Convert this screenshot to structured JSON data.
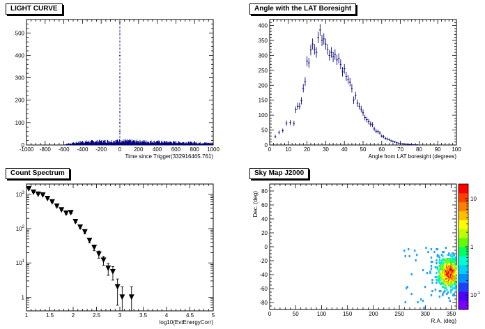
{
  "chart_data": [
    {
      "type": "histogram",
      "title": "LIGHT CURVE",
      "xlabel": "Time since Trigger(332916465.761)",
      "ylabel": "",
      "xlim": [
        -1000,
        1000
      ],
      "ylim": [
        0,
        560
      ],
      "xticks": [
        -1000,
        -800,
        -600,
        -400,
        -200,
        0,
        200,
        400,
        600,
        800,
        1000
      ],
      "yticks": [
        0,
        100,
        200,
        300,
        400,
        500
      ],
      "background_band": {
        "x": [
          -600,
          1000
        ],
        "level_at": [
          [
            -600,
            2
          ],
          [
            -400,
            14
          ],
          [
            -200,
            16
          ],
          [
            0,
            18
          ],
          [
            200,
            16
          ],
          [
            400,
            14
          ],
          [
            600,
            12
          ],
          [
            800,
            10
          ],
          [
            1000,
            8
          ]
        ]
      },
      "spike": {
        "x": 0,
        "values": [
          0,
          20,
          60,
          100,
          150,
          200,
          300,
          400,
          500,
          545
        ]
      },
      "color": "#000080"
    },
    {
      "type": "errorbar",
      "title": "Angle with the LAT Boresight",
      "xlabel": "Angle from LAT boresight (degrees)",
      "ylabel": "",
      "xlim": [
        0,
        100
      ],
      "ylim": [
        0,
        420
      ],
      "xticks": [
        0,
        10,
        20,
        30,
        40,
        50,
        60,
        70,
        80,
        90,
        100
      ],
      "yticks": [
        0,
        50,
        100,
        150,
        200,
        250,
        300,
        350,
        400
      ],
      "x": [
        3,
        5,
        7,
        9,
        11,
        13,
        14,
        15,
        16,
        17,
        18,
        19,
        20,
        21,
        22,
        23,
        24,
        25,
        26,
        27,
        28,
        29,
        30,
        31,
        32,
        33,
        34,
        35,
        36,
        37,
        38,
        39,
        40,
        41,
        42,
        43,
        44,
        45,
        46,
        47,
        48,
        49,
        50,
        51,
        52,
        53,
        54,
        55,
        56,
        57,
        58,
        59,
        60,
        61,
        62,
        63,
        64,
        65,
        66,
        67,
        68,
        69,
        70,
        71,
        72,
        73,
        74,
        75,
        76,
        77,
        78,
        79
      ],
      "y": [
        28,
        42,
        48,
        73,
        75,
        72,
        118,
        130,
        130,
        148,
        190,
        212,
        280,
        275,
        318,
        338,
        320,
        310,
        360,
        385,
        350,
        355,
        338,
        320,
        300,
        310,
        295,
        303,
        285,
        290,
        270,
        245,
        255,
        230,
        220,
        210,
        190,
        150,
        165,
        140,
        130,
        120,
        108,
        92,
        85,
        78,
        70,
        68,
        54,
        46,
        45,
        40,
        30,
        28,
        22,
        20,
        18,
        14,
        12,
        10,
        8,
        6,
        5,
        4,
        3,
        3,
        2,
        2,
        1,
        1,
        1,
        1
      ],
      "color": "#000080"
    },
    {
      "type": "errorbar",
      "title": "Count Spectrum",
      "xlabel": "log10(EvtEnergyCorr)",
      "ylabel": "",
      "xlim": [
        1,
        5
      ],
      "ylim": [
        0.4,
        2000
      ],
      "yscale": "log",
      "xticks": [
        1,
        1.5,
        2,
        2.5,
        3,
        3.5,
        4,
        4.5,
        5
      ],
      "yticks": [
        1,
        10,
        100,
        1000
      ],
      "x": [
        1.05,
        1.15,
        1.25,
        1.35,
        1.45,
        1.55,
        1.65,
        1.75,
        1.85,
        1.95,
        2.05,
        2.15,
        2.25,
        2.35,
        2.45,
        2.55,
        2.65,
        2.75,
        2.85,
        2.95,
        3.05,
        3.25
      ],
      "y": [
        1450,
        1150,
        1000,
        950,
        750,
        600,
        450,
        350,
        280,
        290,
        160,
        110,
        80,
        45,
        28,
        18,
        12,
        7,
        5.5,
        2,
        1,
        1
      ],
      "marker": "inverted-triangle",
      "color": "#000000"
    },
    {
      "type": "heatmap",
      "title": "Sky Map J2000",
      "xlabel": "R.A. (deg)",
      "ylabel": "Dec. (deg)",
      "xlim": [
        0,
        360
      ],
      "ylim": [
        -90,
        90
      ],
      "xticks": [
        0,
        50,
        100,
        150,
        200,
        250,
        300,
        350
      ],
      "yticks": [
        -80,
        -60,
        -40,
        -20,
        0,
        20,
        40,
        60,
        80
      ],
      "hotspot": {
        "ra": 345,
        "dec": -38
      },
      "colorbar": {
        "scale": "log",
        "ticks": [
          "10",
          "1",
          "10^-1"
        ],
        "range": [
          0.05,
          20
        ]
      }
    }
  ]
}
